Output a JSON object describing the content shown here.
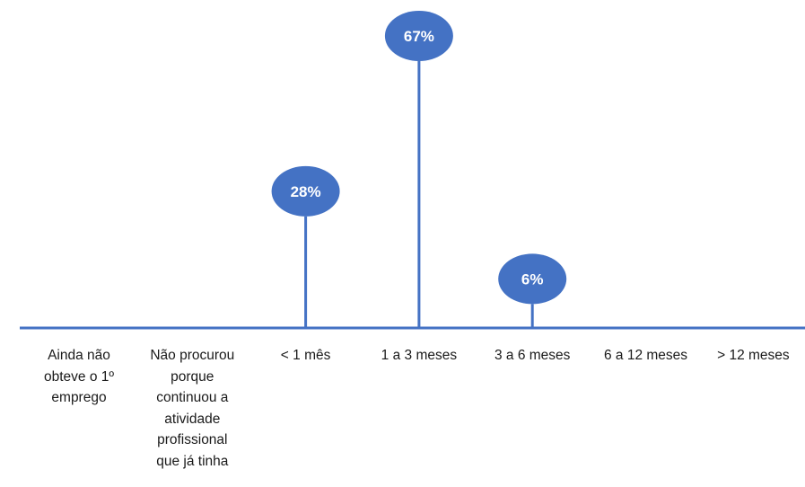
{
  "chart_data": {
    "type": "lollipop",
    "categories": [
      "Ainda não\nobteve o 1º\nemprego",
      "Não procurou\nporque\ncontinuou a\natividade\nprofissional\nque já tinha",
      "< 1  mês",
      "1  a  3 meses",
      "3  a  6 meses",
      "6  a 12 meses",
      "> 12 meses"
    ],
    "values": [
      0,
      0,
      28,
      67,
      6,
      0,
      0
    ],
    "data_labels": [
      "",
      "",
      "28%",
      "67%",
      "6%",
      "",
      ""
    ],
    "unit": "%",
    "title": "",
    "xlabel": "",
    "ylabel": "",
    "ylim": [
      0,
      67
    ],
    "grid": false,
    "legend": "none",
    "colors": {
      "marker": "#4472C4",
      "stem": "#4472C4",
      "axis": "#4472C4",
      "label_text": "#ffffff",
      "category_text": "#1a1a1a"
    }
  }
}
